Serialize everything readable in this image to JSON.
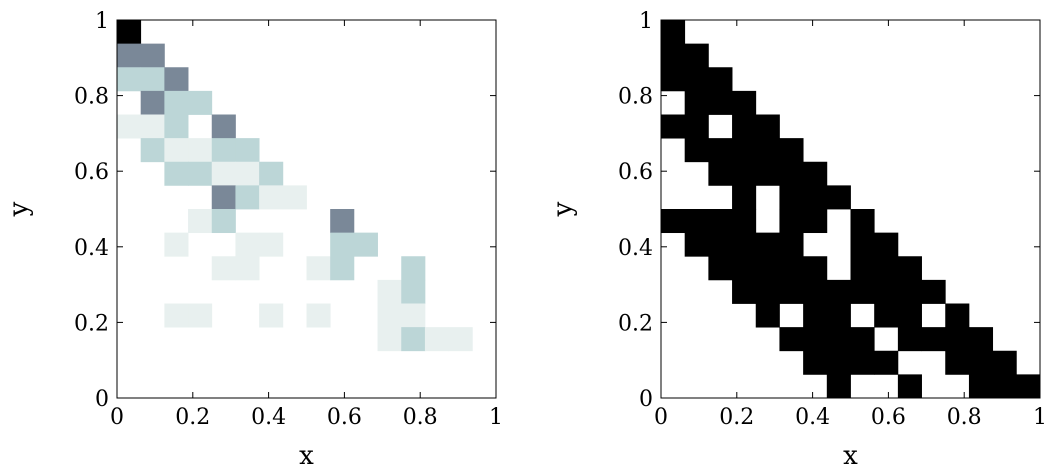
{
  "chart_data": [
    {
      "type": "heatmap",
      "grid": "off",
      "xlabel": "x",
      "ylabel": "y",
      "xlim": [
        0,
        1
      ],
      "ylim": [
        0,
        1
      ],
      "xticks": [
        "0",
        "0.2",
        "0.4",
        "0.6",
        "0.8",
        "1"
      ],
      "yticks": [
        "0",
        "0.2",
        "0.4",
        "0.6",
        "0.8",
        "1"
      ],
      "cell_size": 0.0625,
      "color_levels": {
        "1": "#e8f0ef",
        "2": "#bcd6d7",
        "3": "#7a8898",
        "4": "#000000"
      },
      "rows_top_to_bottom": [
        "4000000000000000",
        "3300000000000000",
        "2230000000000000",
        "0322000000000000",
        "1120300000000000",
        "0211220000000000",
        "0022112000000000",
        "0000321100000000",
        "0001200003000000",
        "0010011002200000",
        "0000110012002000",
        "0000000000012000",
        "0011001010011000",
        "0000000000012110",
        "0000000000000000",
        "0000000000000000"
      ]
    },
    {
      "type": "heatmap",
      "grid": "off",
      "xlabel": "x",
      "ylabel": "y",
      "xlim": [
        0,
        1
      ],
      "ylim": [
        0,
        1
      ],
      "xticks": [
        "0",
        "0.2",
        "0.4",
        "0.6",
        "0.8",
        "1"
      ],
      "yticks": [
        "0",
        "0.2",
        "0.4",
        "0.6",
        "0.8",
        "1"
      ],
      "cell_size": 0.0625,
      "color_levels": {
        "1": "#000000"
      },
      "rows_top_to_bottom": [
        "1000000000000000",
        "1100000000000000",
        "1110000000000000",
        "0111000000000000",
        "1101100000000000",
        "0111110000000000",
        "0011111000000000",
        "0001011100000000",
        "1111011010000000",
        "0111110011000000",
        "0011111011100000",
        "0001111111110000",
        "0000101101101000",
        "0000011110111100",
        "0000001111001110",
        "0000000100100111"
      ]
    }
  ]
}
